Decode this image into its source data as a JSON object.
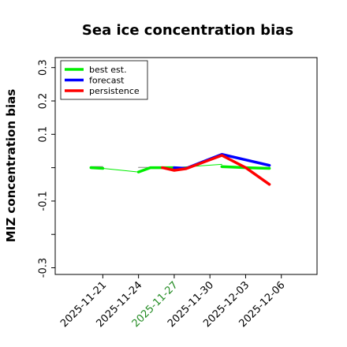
{
  "chart_data": {
    "type": "line",
    "title": "Sea ice concentration bias",
    "xlabel": "",
    "ylabel": "MIZ concentration bias",
    "ylim": [
      -0.32,
      0.33
    ],
    "yticks": [
      {
        "value": 0.3,
        "label": "0.3"
      },
      {
        "value": 0.2,
        "label": "0.2"
      },
      {
        "value": 0.1,
        "label": "0.1"
      },
      {
        "value": 0.0,
        "label": ""
      },
      {
        "value": -0.1,
        "label": "-0.1"
      },
      {
        "value": -0.2,
        "label": ""
      },
      {
        "value": -0.3,
        "label": "-0.3"
      }
    ],
    "xlim": [
      "2025-11-17",
      "2025-12-09"
    ],
    "xticks": [
      {
        "value": "2025-11-21",
        "label": "2025-11-21",
        "color": "#000000"
      },
      {
        "value": "2025-11-24",
        "label": "2025-11-24",
        "color": "#000000"
      },
      {
        "value": "2025-11-27",
        "label": "2025-11-27",
        "color": "#228b22"
      },
      {
        "value": "2025-11-30",
        "label": "2025-11-30",
        "color": "#000000"
      },
      {
        "value": "2025-12-03",
        "label": "2025-12-03",
        "color": "#000000"
      },
      {
        "value": "2025-12-06",
        "label": "2025-12-06",
        "color": "#000000"
      }
    ],
    "legend": {
      "position": "top-left"
    },
    "series": [
      {
        "name": "best est.",
        "color": "#00ee00",
        "segments": [
          [
            {
              "x": "2025-11-20",
              "y": 0.0
            },
            {
              "x": "2025-11-21",
              "y": -0.002
            }
          ],
          [
            {
              "x": "2025-11-21",
              "y": -0.002
            },
            {
              "x": "2025-11-24",
              "y": -0.013
            }
          ],
          [
            {
              "x": "2025-11-24",
              "y": -0.013
            },
            {
              "x": "2025-11-25",
              "y": 0.0
            },
            {
              "x": "2025-11-27",
              "y": 0.0
            }
          ],
          [
            {
              "x": "2025-11-27",
              "y": 0.0
            },
            {
              "x": "2025-12-01",
              "y": 0.01
            }
          ],
          [
            {
              "x": "2025-12-01",
              "y": 0.003
            },
            {
              "x": "2025-12-03",
              "y": 0.0
            },
            {
              "x": "2025-12-05",
              "y": -0.002
            }
          ]
        ],
        "thick": [
          true,
          false,
          true,
          false,
          true
        ]
      },
      {
        "name": "forecast",
        "color": "#0000ff",
        "segments": [
          [
            {
              "x": "2025-11-27",
              "y": 0.0
            },
            {
              "x": "2025-11-28",
              "y": -0.002
            },
            {
              "x": "2025-12-01",
              "y": 0.04
            },
            {
              "x": "2025-12-05",
              "y": 0.007
            }
          ]
        ],
        "thick": [
          true
        ]
      },
      {
        "name": "persistence",
        "color": "#ff0000",
        "segments": [
          [
            {
              "x": "2025-11-26",
              "y": 0.0
            },
            {
              "x": "2025-11-27",
              "y": -0.008
            },
            {
              "x": "2025-11-28",
              "y": -0.003
            },
            {
              "x": "2025-12-01",
              "y": 0.037
            },
            {
              "x": "2025-12-03",
              "y": 0.0
            },
            {
              "x": "2025-12-05",
              "y": -0.05
            }
          ]
        ],
        "thick": [
          true
        ]
      },
      {
        "name": "",
        "color": "#808080",
        "segments": [
          [
            {
              "x": "2025-11-20",
              "y": 0.003
            },
            {
              "x": "2025-11-21",
              "y": 0.003
            }
          ],
          [
            {
              "x": "2025-11-24",
              "y": 0.001
            },
            {
              "x": "2025-11-28",
              "y": 0.001
            }
          ],
          [
            {
              "x": "2025-12-01",
              "y": 0.0
            },
            {
              "x": "2025-12-03",
              "y": 0.0
            }
          ]
        ],
        "thick": [
          false,
          false,
          false
        ]
      }
    ]
  }
}
